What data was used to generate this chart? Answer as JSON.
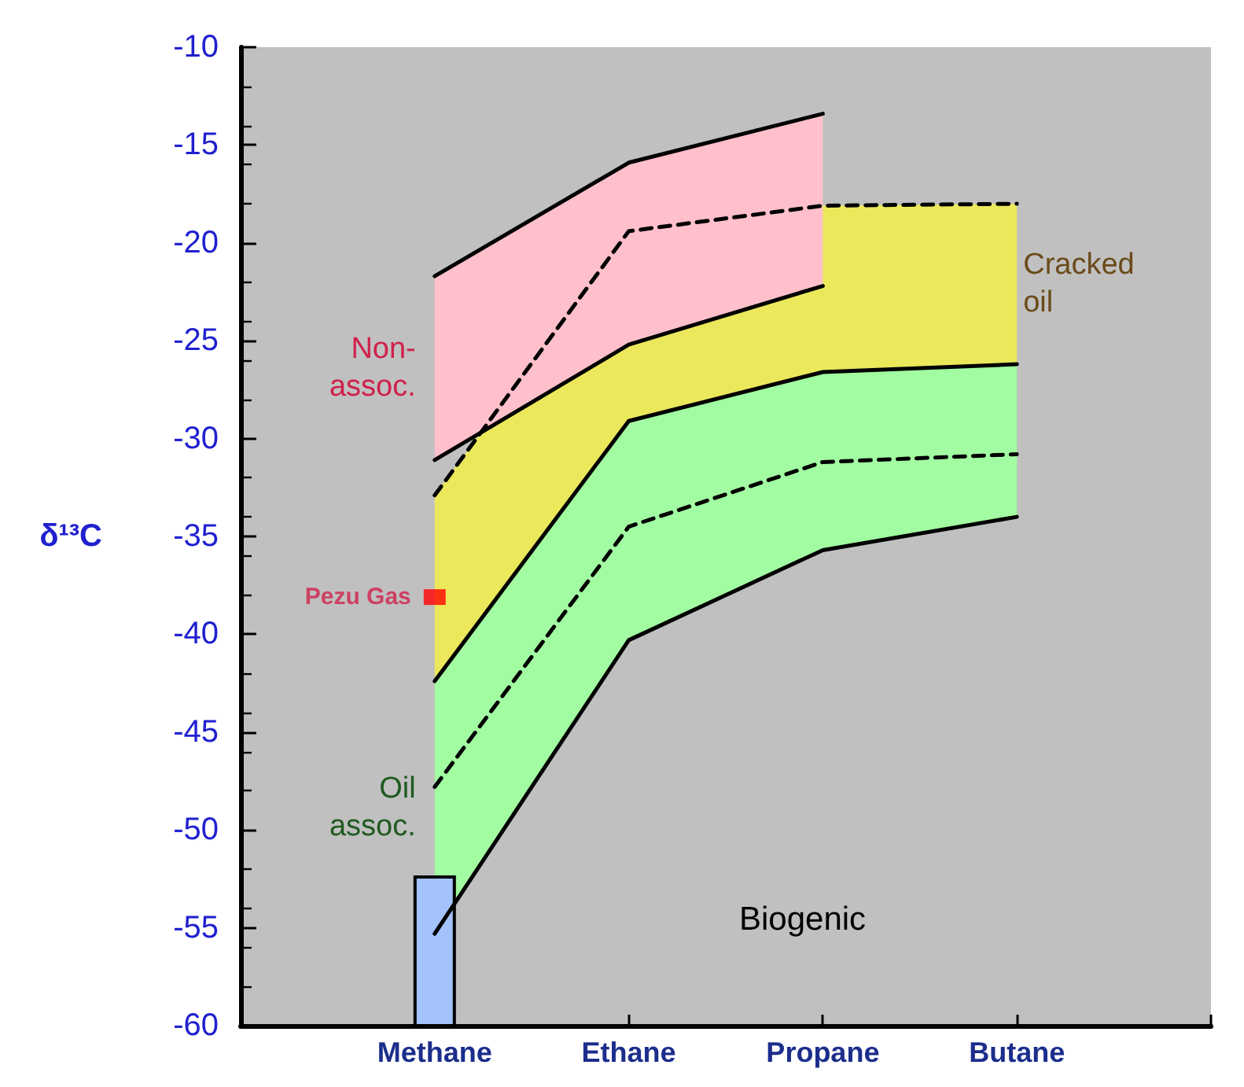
{
  "chart_data": {
    "type": "line",
    "ylabel": "δ¹³C",
    "categories": [
      "Methane",
      "Ethane",
      "Propane",
      "Butane"
    ],
    "ylim": [
      -60,
      -10
    ],
    "yticks": [
      -60,
      -55,
      -50,
      -45,
      -40,
      -35,
      -30,
      -25,
      -20,
      -15,
      -10
    ],
    "grid": false,
    "legend": false,
    "marker": "none",
    "series": [
      {
        "name": "Cracked oil",
        "color": "#000000",
        "line_style": "dashed",
        "values": [
          -32.9,
          -19.4,
          -18.1,
          -18.0
        ],
        "upper": [
          -32.9,
          -19.4,
          -18.1,
          -18.0
        ],
        "lower": [
          -42.4,
          -29.1,
          -26.6,
          -26.2
        ]
      },
      {
        "name": "Non-assoc.",
        "color": "#000000",
        "line_style": "solid",
        "values": [
          -21.7,
          -15.9,
          -13.4,
          null
        ],
        "upper": [
          -21.7,
          -15.9,
          -13.4,
          null
        ],
        "lower": [
          -31.1,
          -25.2,
          -22.2,
          null
        ]
      },
      {
        "name": "Oil assoc.",
        "color": "#000000",
        "line_style": "dashed",
        "values": [
          -47.8,
          -34.5,
          -31.2,
          -30.8
        ],
        "upper": [
          -42.4,
          -29.1,
          -26.6,
          -26.2
        ],
        "lower": [
          -55.3,
          -40.3,
          -35.7,
          -34.0
        ]
      },
      {
        "color": "#000000",
        "line_style": "solid",
        "values": [
          -31.1,
          -25.2,
          -22.2,
          null
        ]
      },
      {
        "color": "#000000",
        "line_style": "solid",
        "values": [
          -42.4,
          -29.1,
          -26.6,
          -26.2
        ]
      },
      {
        "color": "#000000",
        "line_style": "solid",
        "values": [
          -55.3,
          -40.3,
          -35.7,
          -34.0
        ]
      },
      {
        "type": "bar",
        "color": "#a4c2fc",
        "values": [
          7.6,
          null,
          null,
          null
        ],
        "base": [
          -60,
          null,
          null,
          null
        ]
      },
      {
        "type": "scatter",
        "name": "Pezu Gas",
        "color": "#ff0000",
        "marker": "square",
        "x": [
          "Methane"
        ],
        "values": [
          -38.1
        ]
      }
    ],
    "annotations": [
      "Biogenic"
    ]
  }
}
